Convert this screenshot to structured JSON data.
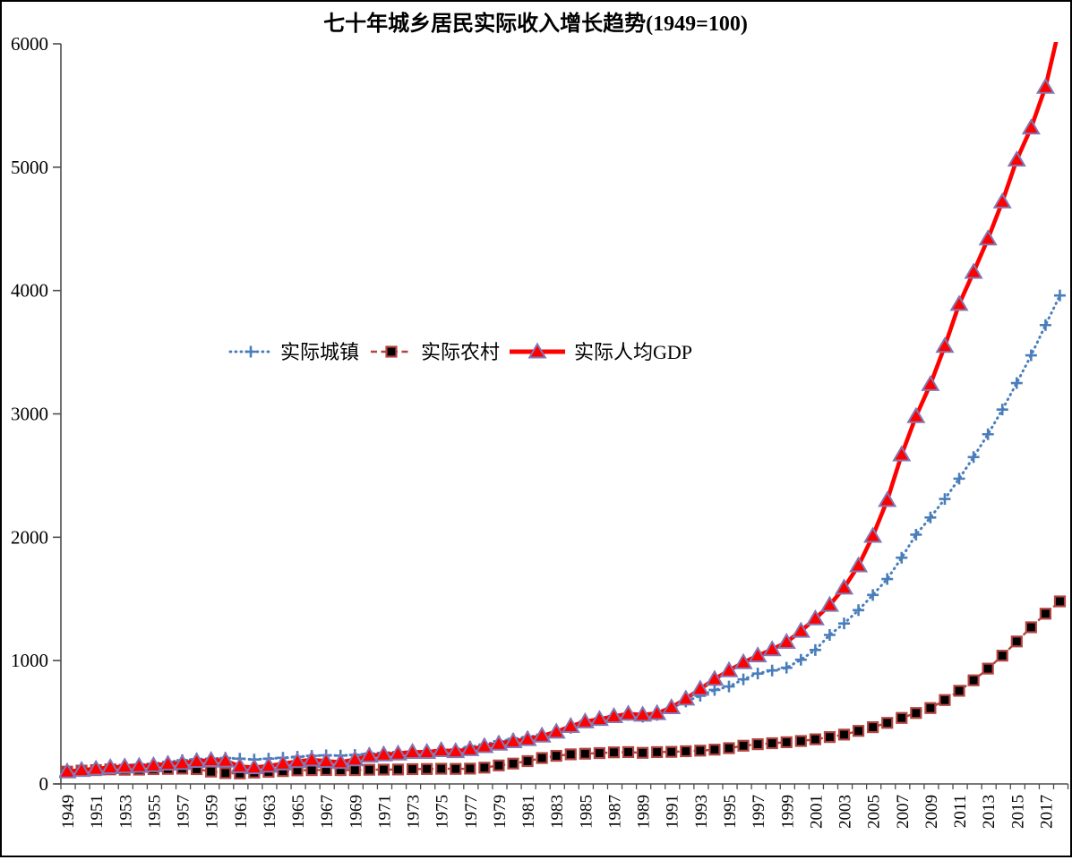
{
  "title": "七十年城乡居民实际收入增长趋势(1949=100)",
  "chart_data": {
    "type": "line",
    "title": "七十年城乡居民实际收入增长趋势(1949=100)",
    "xlabel": "",
    "ylabel": "",
    "ylim": [
      0,
      6000
    ],
    "yticks": [
      0,
      1000,
      2000,
      3000,
      4000,
      5000,
      6000
    ],
    "grid": false,
    "legend_position": "inside-left-middle",
    "x_tick_labels": [
      "1949",
      "1951",
      "1953",
      "1955",
      "1957",
      "1959",
      "1961",
      "1963",
      "1965",
      "1967",
      "1969",
      "1971",
      "1973",
      "1975",
      "1977",
      "1979",
      "1981",
      "1983",
      "1985",
      "1987",
      "1989",
      "1991",
      "1993",
      "1995",
      "1997",
      "1999",
      "2001",
      "2003",
      "2005",
      "2007",
      "2009",
      "2011",
      "2013",
      "2015",
      "2017"
    ],
    "years": [
      1949,
      1950,
      1951,
      1952,
      1953,
      1954,
      1955,
      1956,
      1957,
      1958,
      1959,
      1960,
      1961,
      1962,
      1963,
      1964,
      1965,
      1966,
      1967,
      1968,
      1969,
      1970,
      1971,
      1972,
      1973,
      1974,
      1975,
      1976,
      1977,
      1978,
      1979,
      1980,
      1981,
      1982,
      1983,
      1984,
      1985,
      1986,
      1987,
      1988,
      1989,
      1990,
      1991,
      1992,
      1993,
      1994,
      1995,
      1996,
      1997,
      1998,
      1999,
      2000,
      2001,
      2002,
      2003,
      2004,
      2005,
      2006,
      2007,
      2008,
      2009,
      2010,
      2011,
      2012,
      2013,
      2014,
      2015,
      2016,
      2017,
      2018
    ],
    "series": [
      {
        "name": "实际城镇",
        "line_style": "dotted",
        "marker": "plus",
        "color": "#4a7ebb",
        "values": [
          100,
          118,
          130,
          142,
          152,
          158,
          163,
          178,
          192,
          200,
          205,
          210,
          205,
          198,
          205,
          212,
          220,
          228,
          232,
          230,
          235,
          245,
          252,
          258,
          262,
          266,
          272,
          280,
          300,
          320,
          345,
          365,
          380,
          400,
          420,
          455,
          510,
          530,
          550,
          560,
          545,
          560,
          615,
          668,
          715,
          762,
          790,
          848,
          895,
          920,
          942,
          1007,
          1086,
          1208,
          1301,
          1409,
          1532,
          1661,
          1834,
          2021,
          2160,
          2310,
          2475,
          2650,
          2835,
          3035,
          3250,
          3475,
          3720,
          3960
        ]
      },
      {
        "name": "实际农村",
        "line_style": "dashed",
        "marker": "square",
        "color": "#b34440",
        "marker_fill": "#000000",
        "values": [
          100,
          108,
          112,
          118,
          115,
          116,
          120,
          122,
          124,
          120,
          100,
          88,
          85,
          92,
          98,
          104,
          110,
          112,
          113,
          112,
          112,
          115,
          116,
          117,
          120,
          121,
          123,
          122,
          124,
          132,
          150,
          165,
          185,
          210,
          228,
          240,
          245,
          250,
          256,
          258,
          252,
          258,
          260,
          265,
          270,
          278,
          290,
          310,
          322,
          330,
          338,
          348,
          362,
          380,
          400,
          430,
          460,
          495,
          535,
          575,
          615,
          680,
          755,
          840,
          935,
          1040,
          1155,
          1270,
          1380,
          1480
        ]
      },
      {
        "name": "实际人均GDP",
        "line_style": "solid",
        "marker": "triangle",
        "color": "#ff0000",
        "marker_border": "#8277b4",
        "values": [
          100,
          112,
          122,
          134,
          140,
          144,
          150,
          162,
          168,
          184,
          192,
          188,
          142,
          133,
          146,
          164,
          183,
          196,
          184,
          176,
          198,
          228,
          238,
          245,
          258,
          258,
          272,
          264,
          280,
          305,
          325,
          345,
          362,
          390,
          422,
          468,
          505,
          525,
          548,
          568,
          560,
          572,
          620,
          690,
          770,
          850,
          920,
          985,
          1040,
          1090,
          1150,
          1240,
          1340,
          1450,
          1590,
          1770,
          2010,
          2300,
          2670,
          2980,
          3240,
          3550,
          3890,
          4150,
          4420,
          4720,
          5060,
          5320,
          5650,
          6150
        ]
      }
    ],
    "axis_color": "#4d4d4d"
  }
}
